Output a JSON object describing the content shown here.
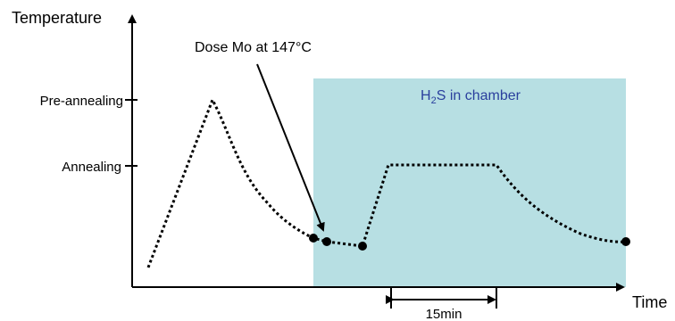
{
  "axes": {
    "y_label": "Temperature",
    "x_label": "Time",
    "y_ticks": [
      "Pre-annealing",
      "Annealing"
    ]
  },
  "annotations": {
    "dose": "Dose Mo at 147°C",
    "region_prefix": "H",
    "region_subscript": "2",
    "region_suffix": "S in chamber",
    "duration": "15min"
  },
  "colors": {
    "region_fill": "#b7dfe3",
    "region_text": "#2a3f9d",
    "line": "#000000"
  }
}
